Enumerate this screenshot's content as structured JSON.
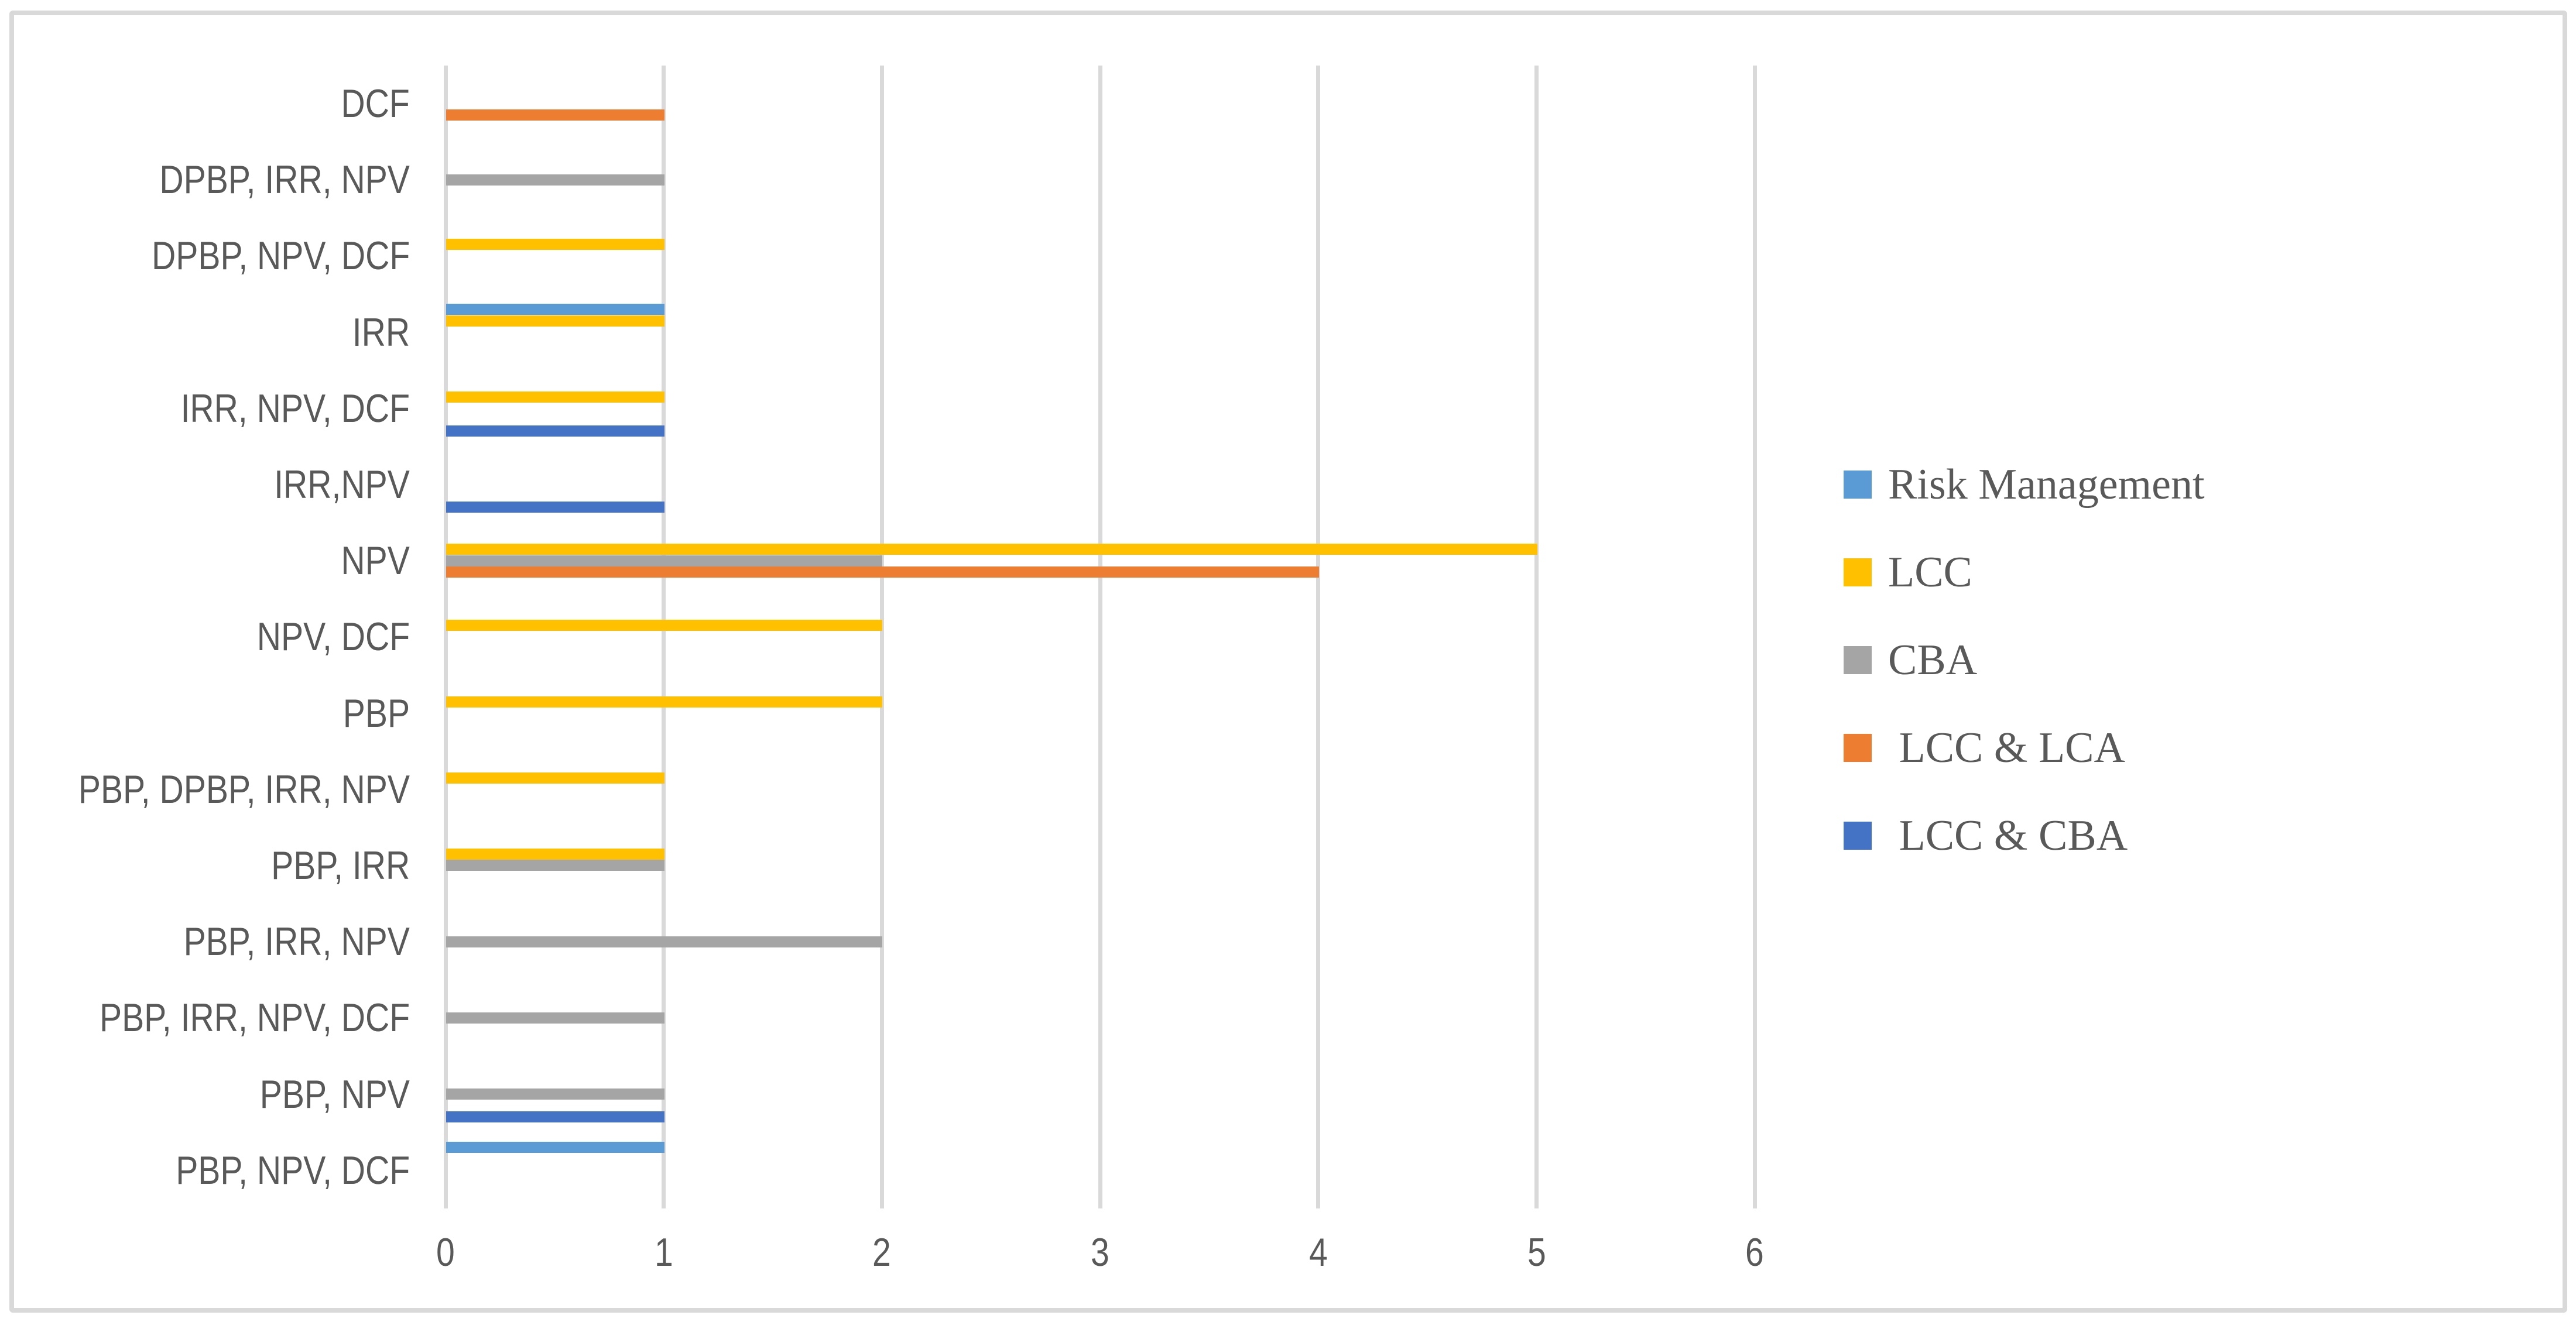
{
  "chart_data": {
    "type": "bar",
    "orientation": "horizontal",
    "title": "",
    "xlabel": "",
    "ylabel": "",
    "xlim": [
      0,
      6
    ],
    "x_ticks": [
      "0",
      "1",
      "2",
      "3",
      "4",
      "5",
      "6"
    ],
    "grid": "vertical",
    "legend_position": "right",
    "categories": [
      "DCF",
      "DPBP, IRR, NPV",
      "DPBP, NPV, DCF",
      "IRR",
      "IRR, NPV, DCF",
      "IRR,NPV",
      "NPV",
      "NPV, DCF",
      "PBP",
      "PBP, DPBP, IRR, NPV",
      "PBP, IRR",
      "PBP, IRR, NPV",
      "PBP, IRR, NPV, DCF",
      "PBP, NPV",
      "PBP, NPV, DCF"
    ],
    "series": [
      {
        "name": "Risk Management",
        "color": "#5B9BD5",
        "values": [
          0,
          0,
          0,
          1,
          0,
          0,
          0,
          0,
          0,
          0,
          0,
          0,
          0,
          0,
          1
        ]
      },
      {
        "name": "LCC",
        "color": "#FFC000",
        "values": [
          0,
          0,
          1,
          1,
          1,
          0,
          5,
          2,
          2,
          1,
          1,
          0,
          0,
          0,
          0
        ]
      },
      {
        "name": "CBA",
        "color": "#A5A5A5",
        "values": [
          0,
          1,
          0,
          0,
          0,
          0,
          2,
          0,
          0,
          0,
          1,
          2,
          1,
          1,
          0
        ]
      },
      {
        "name": "LCC & LCA",
        "color": "#ED7D31",
        "values": [
          1,
          0,
          0,
          0,
          0,
          0,
          4,
          0,
          0,
          0,
          0,
          0,
          0,
          0,
          0
        ]
      },
      {
        "name": "LCC & CBA",
        "color": "#4472C4",
        "values": [
          0,
          0,
          0,
          0,
          1,
          1,
          0,
          0,
          0,
          0,
          0,
          0,
          0,
          1,
          0
        ]
      }
    ],
    "legend_labels": [
      "Risk Management",
      "LCC",
      "CBA",
      " LCC & LCA",
      " LCC & CBA"
    ]
  },
  "colors": {
    "gridline": "#D9D9D9",
    "frame_border": "#D9D9D9",
    "text": "#595959",
    "background": "#FFFFFF"
  }
}
